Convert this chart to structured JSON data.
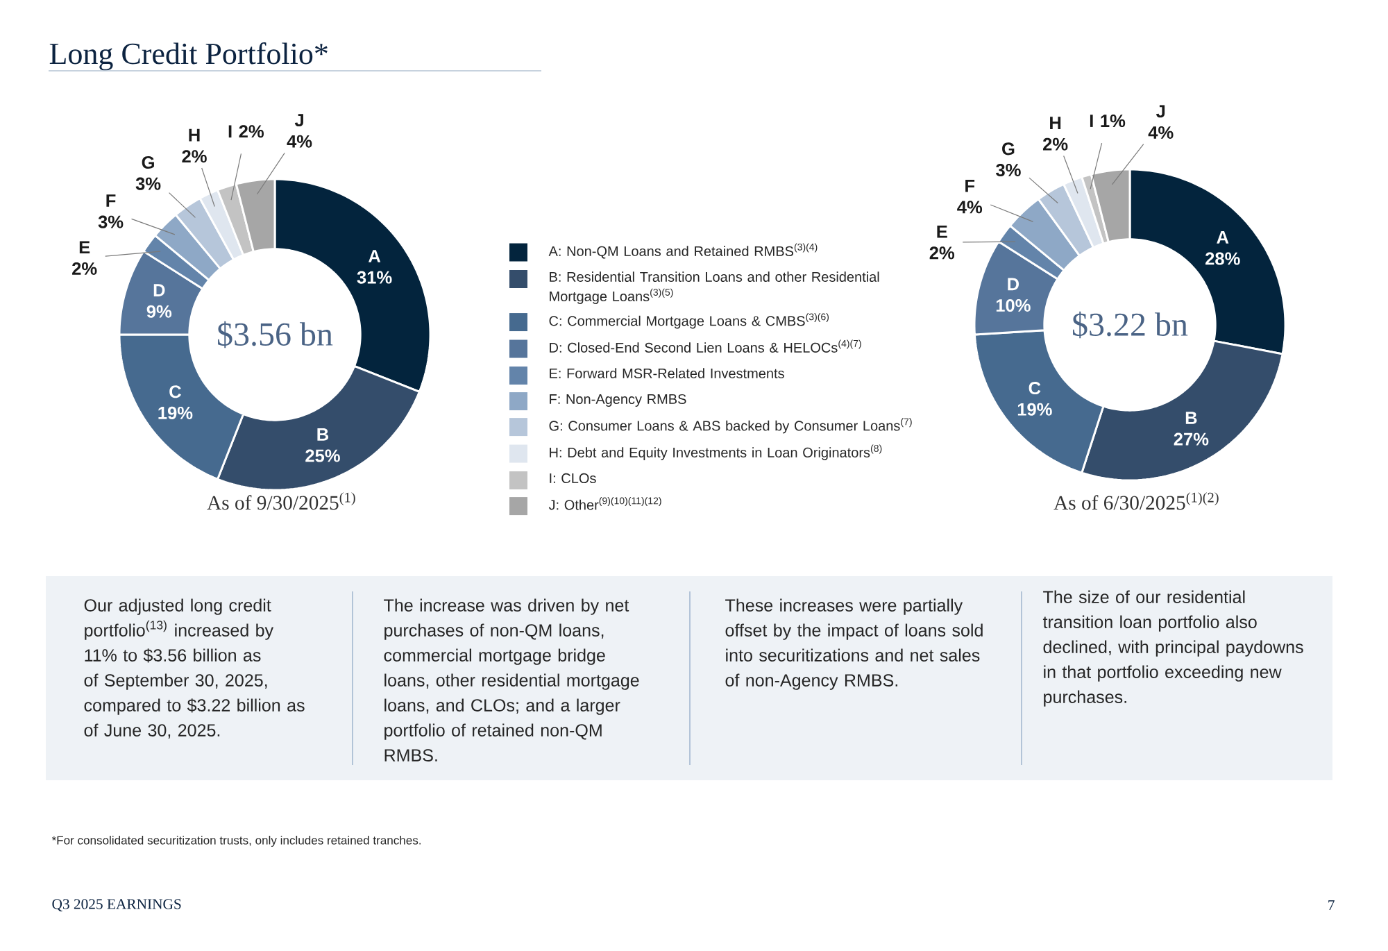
{
  "chart_data": [
    {
      "type": "donut",
      "title": "Long Credit Portfolio*",
      "subtitle": "As of 9/30/2025$^{(1)}$",
      "categories": [
        "A: Non-QM Loans and Retained RMBS$^{(3)(4)}$",
        "B: Residential Transition Loans and other Residential Mortgage Loans$^{(3)(5)}$",
        "C: Commercial Mortgage Loans & CMBS$^{(3)(6)}$",
        "D: Closed-End Second Lien Loans & HELOCs$^{(4)(7)}$",
        "E: Forward MSR-Related Investments",
        "F: Non-Agency RMBS",
        "G: Consumer Loans & ABS backed by Consumer Loans$^{(7)}$",
        "H: Debt and Equity Investments in Loan Originators$^{(8)}$",
        "I: CLOs",
        "J: Other$^{(9)(10)(11)(12)}$"
      ],
      "values": [
        31,
        25,
        19,
        9,
        2,
        3,
        3,
        2,
        2,
        4
      ],
      "colors": [
        "#03243d",
        "#344d6b",
        "#466a8f",
        "#56759b",
        "#6384aa",
        "#8ea8c6",
        "#b6c6da",
        "#dfe6ef",
        "#c3c3c3",
        "#a6a6a6"
      ],
      "value_labels": [
        "A 31%",
        "B 25%",
        "C 19%",
        "D 9%",
        "E 2%",
        "F 3%",
        "G 3%",
        "H 2%",
        "I 2%",
        "J 4%"
      ],
      "legend": "right",
      "annotations": [
        "$3.56 bn",
        "Our adjusted long credit portfolio$^{(13)}$ increased by 11% to $3.56 billion as of September 30, 2025, compared to $3.22 billion as of June 30, 2025.",
        "The increase was driven by net purchases of non-QM loans, commercial mortgage bridge loans, other residential mortgage loans, and CLOs; and a larger portfolio of retained non-QM RMBS.",
        "These increases were partially offset by the impact of loans sold into securitizations and net sales of non-Agency RMBS.",
        "The size of our residential transition loan portfolio also declined, with principal paydowns in that portfolio exceeding new purchases.",
        "*For consolidated securitization trusts, only includes retained tranches.",
        "Q3 2025 EARNINGS",
        "7"
      ]
    },
    {
      "type": "donut",
      "subtitle": "As of 6/30/2025$^{(1)(2)}$",
      "categories": [
        null,
        null,
        null,
        null,
        null,
        null,
        null,
        null,
        null,
        null
      ],
      "values": [
        28,
        27,
        19,
        10,
        2,
        4,
        3,
        2,
        1,
        4
      ],
      "colors": [
        "#03243d",
        "#344d6b",
        "#466a8f",
        "#56759b",
        "#6384aa",
        "#8ea8c6",
        "#b6c6da",
        "#dfe6ef",
        "#c3c3c3",
        "#a6a6a6"
      ],
      "value_labels": [
        "A 28%",
        "B 27%",
        "C 19%",
        "D 10%",
        "E 2%",
        "F 4%",
        "G 3%",
        "H 2%",
        "I 1%",
        "J 4%"
      ],
      "annotations": [
        "$3.22 bn"
      ]
    }
  ]
}
